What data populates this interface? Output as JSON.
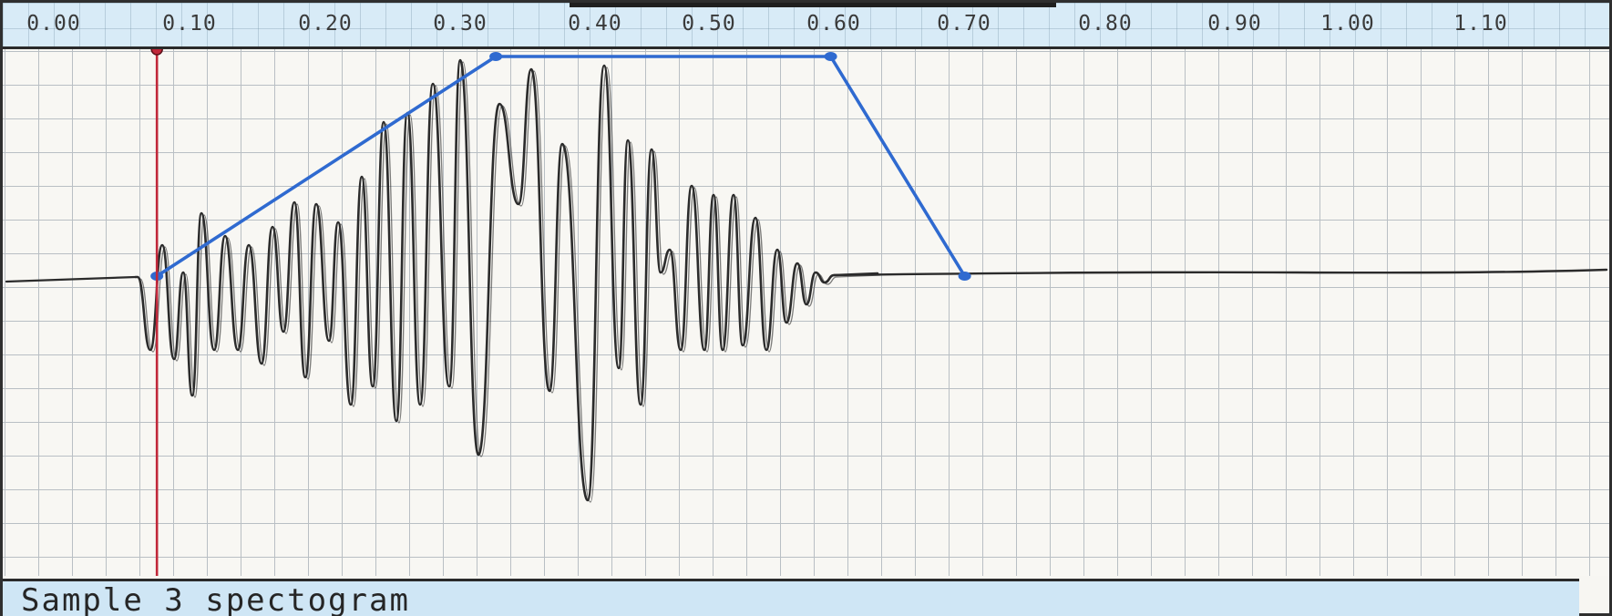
{
  "ruler": {
    "ticks": [
      "0.00",
      "0.10",
      "0.20",
      "0.30",
      "0.40",
      "0.50",
      "0.60",
      "0.70",
      "0.80",
      "0.90",
      "1.00",
      "1.10"
    ]
  },
  "footer": {
    "label": "Sample 3 spectogram"
  },
  "playhead": {
    "time": 0.077,
    "color": "#c0283a"
  },
  "envelope": {
    "color": "#2f6ad0",
    "points": [
      {
        "t": 0.077,
        "level": 0.0
      },
      {
        "t": 0.33,
        "level": 1.0
      },
      {
        "t": 0.58,
        "level": 1.0
      },
      {
        "t": 0.68,
        "level": 0.0
      }
    ]
  },
  "colors": {
    "ruler_bg": "#d8ebf7",
    "waveform": "#2b2b2b",
    "grid": "#b9bfc4"
  }
}
